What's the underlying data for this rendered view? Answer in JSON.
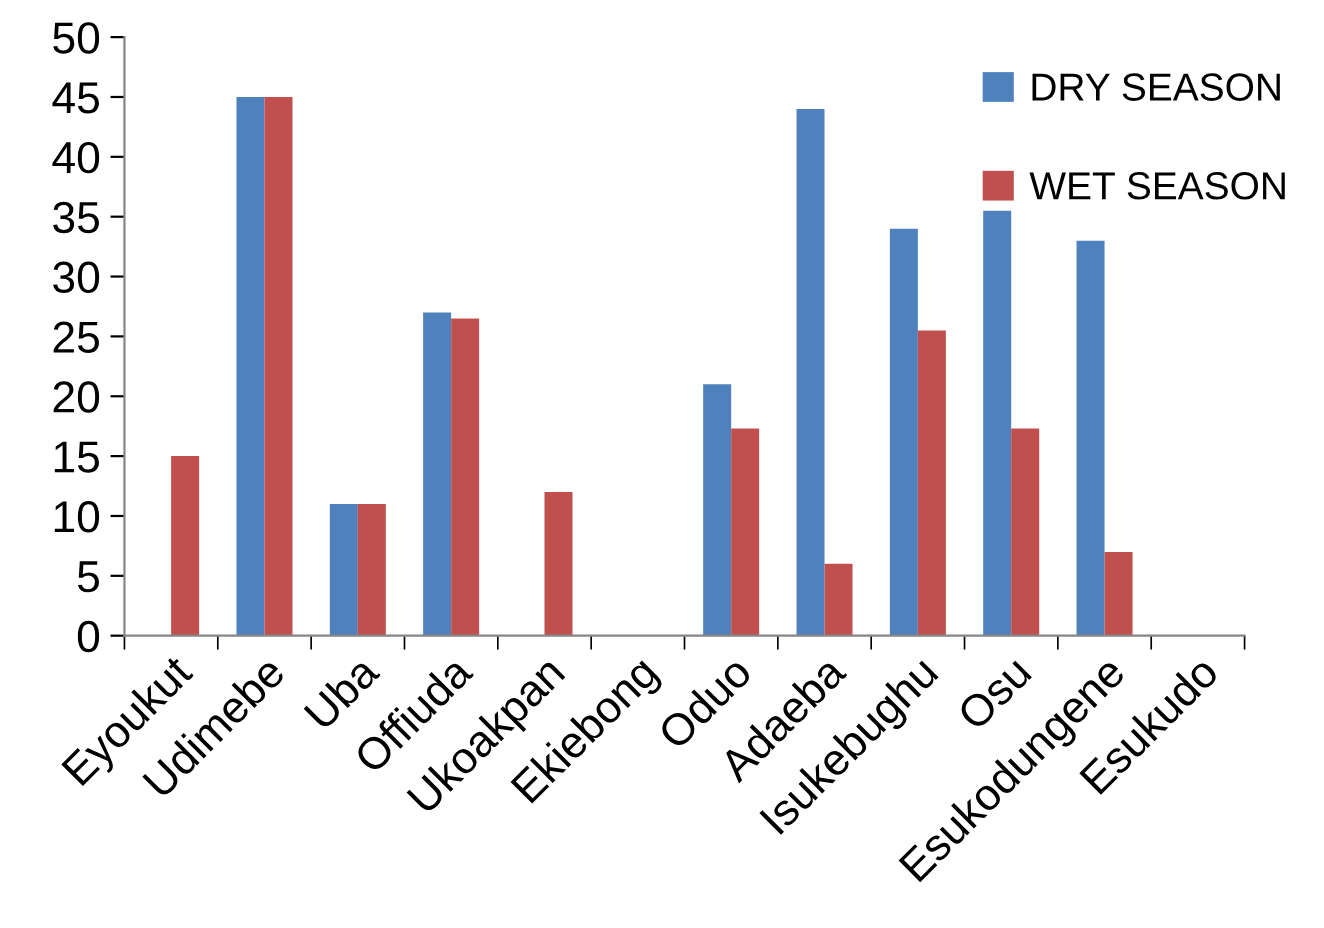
{
  "chart_data": {
    "type": "bar",
    "categories": [
      "Eyoukut",
      "Udimebe",
      "Uba",
      "Offiuda",
      "Ukoakpan",
      "Ekiebong",
      "Oduo",
      "Adaeba",
      "Isukebughu",
      "Osu",
      "Esukodungene",
      "Esukudo"
    ],
    "series": [
      {
        "name": "DRY SEASON",
        "color": "#4f81bd",
        "values": [
          0,
          45,
          11,
          27,
          0,
          0,
          21,
          44,
          34,
          35.5,
          33,
          0
        ]
      },
      {
        "name": "WET SEASON",
        "color": "#c0504d",
        "values": [
          15,
          45,
          11,
          26.5,
          12,
          0,
          17.3,
          6,
          25.5,
          17.3,
          7,
          0
        ]
      }
    ],
    "ylim": [
      0,
      50
    ],
    "yticks": [
      0,
      5,
      10,
      15,
      20,
      25,
      30,
      35,
      40,
      45,
      50
    ],
    "grid": false,
    "legend": "top right"
  }
}
